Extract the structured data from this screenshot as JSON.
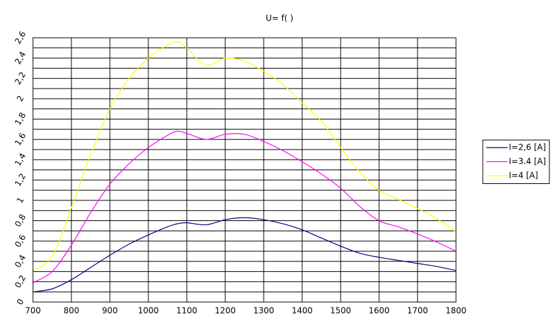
{
  "chart_data": {
    "type": "line",
    "title": "U= f(  )",
    "x": [
      700,
      750,
      800,
      850,
      900,
      950,
      1000,
      1050,
      1075,
      1100,
      1150,
      1200,
      1250,
      1300,
      1350,
      1400,
      1450,
      1500,
      1550,
      1600,
      1650,
      1700,
      1750,
      1800
    ],
    "series": [
      {
        "name": "I=2,6 [A]",
        "color": "#000080",
        "values": [
          0.1,
          0.13,
          0.22,
          0.34,
          0.46,
          0.57,
          0.66,
          0.74,
          0.77,
          0.78,
          0.76,
          0.81,
          0.83,
          0.81,
          0.77,
          0.71,
          0.63,
          0.55,
          0.48,
          0.44,
          0.41,
          0.38,
          0.35,
          0.31
        ]
      },
      {
        "name": "I=3.4 [A]",
        "color": "#ff00ff",
        "values": [
          0.19,
          0.3,
          0.56,
          0.88,
          1.16,
          1.36,
          1.52,
          1.64,
          1.68,
          1.66,
          1.6,
          1.65,
          1.65,
          1.58,
          1.49,
          1.38,
          1.26,
          1.12,
          0.94,
          0.8,
          0.74,
          0.67,
          0.59,
          0.5
        ]
      },
      {
        "name": "I=4 [A]",
        "color": "#ffff00",
        "values": [
          0.31,
          0.45,
          0.93,
          1.45,
          1.9,
          2.2,
          2.4,
          2.53,
          2.56,
          2.5,
          2.33,
          2.4,
          2.37,
          2.27,
          2.14,
          1.96,
          1.78,
          1.52,
          1.28,
          1.1,
          1.01,
          0.92,
          0.82,
          0.69
        ]
      }
    ],
    "xlim": [
      700,
      1800
    ],
    "xticks": [
      700,
      800,
      900,
      1000,
      1100,
      1200,
      1300,
      1400,
      1500,
      1600,
      1700,
      1800
    ],
    "ylim": [
      0,
      2.6
    ],
    "yticks": [
      0,
      {
        "value": 0.2,
        "label": "0,2"
      },
      {
        "value": 0.4,
        "label": "0,4"
      },
      {
        "value": 0.6,
        "label": "0,6"
      },
      {
        "value": 0.8,
        "label": "0,8"
      },
      1,
      {
        "value": 1.2,
        "label": "1,2"
      },
      {
        "value": 1.4,
        "label": "1,4"
      },
      {
        "value": 1.6,
        "label": "1,6"
      },
      {
        "value": 1.8,
        "label": "1,8"
      },
      2,
      {
        "value": 2.2,
        "label": "2,2"
      },
      {
        "value": 2.4,
        "label": "2,4"
      },
      {
        "value": 2.6,
        "label": "2,6"
      }
    ],
    "y_minor_ticks": [
      0.1,
      0.3,
      0.5,
      0.7,
      0.9,
      1.1,
      1.3,
      1.5,
      1.7,
      1.9,
      2.1,
      2.3,
      2.5
    ],
    "grid": true,
    "legend": "right"
  }
}
